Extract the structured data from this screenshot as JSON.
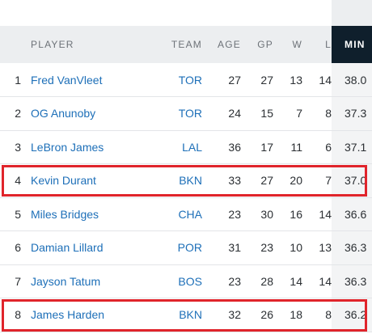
{
  "table": {
    "headers": {
      "player": "PLAYER",
      "team": "TEAM",
      "age": "AGE",
      "gp": "GP",
      "w": "W",
      "l": "L",
      "min": "MIN"
    },
    "rows": [
      {
        "rank": "1",
        "player": "Fred VanVleet",
        "team": "TOR",
        "age": "27",
        "gp": "27",
        "w": "13",
        "l": "14",
        "min": "38.0"
      },
      {
        "rank": "2",
        "player": "OG Anunoby",
        "team": "TOR",
        "age": "24",
        "gp": "15",
        "w": "7",
        "l": "8",
        "min": "37.3"
      },
      {
        "rank": "3",
        "player": "LeBron James",
        "team": "LAL",
        "age": "36",
        "gp": "17",
        "w": "11",
        "l": "6",
        "min": "37.1"
      },
      {
        "rank": "4",
        "player": "Kevin Durant",
        "team": "BKN",
        "age": "33",
        "gp": "27",
        "w": "20",
        "l": "7",
        "min": "37.0"
      },
      {
        "rank": "5",
        "player": "Miles Bridges",
        "team": "CHA",
        "age": "23",
        "gp": "30",
        "w": "16",
        "l": "14",
        "min": "36.6"
      },
      {
        "rank": "6",
        "player": "Damian Lillard",
        "team": "POR",
        "age": "31",
        "gp": "23",
        "w": "10",
        "l": "13",
        "min": "36.3"
      },
      {
        "rank": "7",
        "player": "Jayson Tatum",
        "team": "BOS",
        "age": "23",
        "gp": "28",
        "w": "14",
        "l": "14",
        "min": "36.3"
      },
      {
        "rank": "8",
        "player": "James Harden",
        "team": "BKN",
        "age": "32",
        "gp": "26",
        "w": "18",
        "l": "8",
        "min": "36.2"
      }
    ]
  },
  "colors": {
    "link": "#1d6fb8",
    "highlight": "#e0242b",
    "active_header": "#0f1f2c"
  }
}
